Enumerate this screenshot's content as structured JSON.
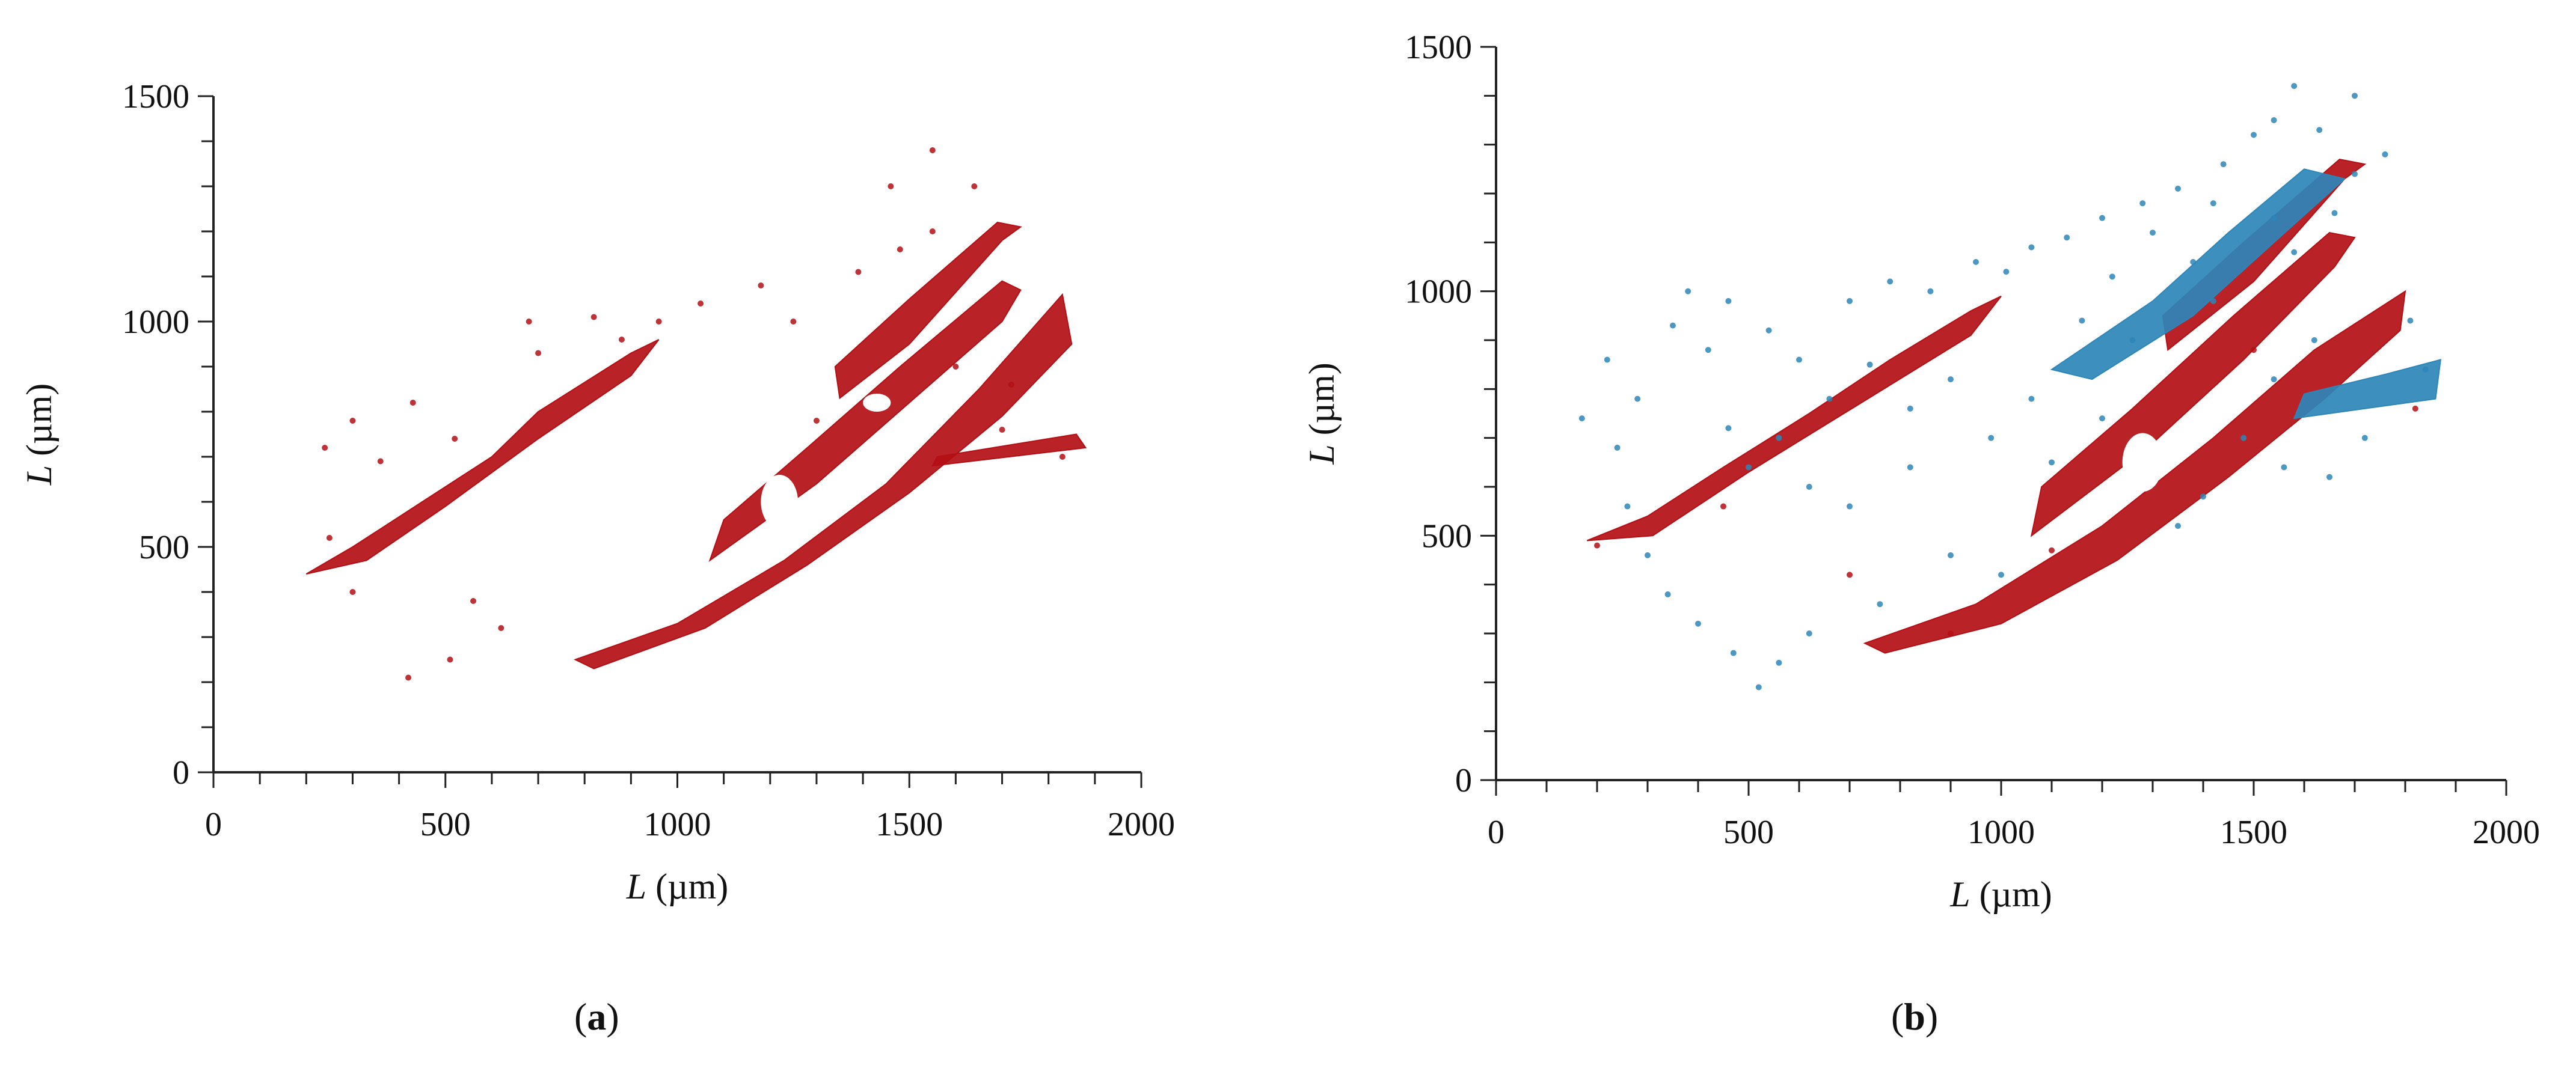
{
  "figure": {
    "panels": [
      {
        "label_open": "(",
        "label_letter": "a",
        "label_close": ")"
      },
      {
        "label_open": "(",
        "label_letter": "b",
        "label_close": ")"
      }
    ]
  },
  "chart_data": [
    {
      "type": "scatter",
      "title": "",
      "xlabel_var": "L",
      "xlabel_unit": "(µm)",
      "ylabel_var": "L",
      "ylabel_unit": "(µm)",
      "xlim": [
        0,
        2000
      ],
      "ylim": [
        0,
        1500
      ],
      "xticks": [
        0,
        500,
        1000,
        1500,
        2000
      ],
      "yticks": [
        0,
        500,
        1000,
        1500
      ],
      "x_minor_step": 100,
      "y_minor_step": 100,
      "grid": false,
      "legend": "none",
      "colors": {
        "pore": "#b30f14",
        "pore_dark": "#5c0a0c"
      },
      "series": [
        {
          "color": "#b30f14",
          "regions": [
            {
              "polygon": [
                [
                  780,
                  250
                ],
                [
                  1000,
                  330
                ],
                [
                  1230,
                  470
                ],
                [
                  1450,
                  640
                ],
                [
                  1650,
                  850
                ],
                [
                  1830,
                  1060
                ],
                [
                  1850,
                  950
                ],
                [
                  1700,
                  790
                ],
                [
                  1500,
                  620
                ],
                [
                  1280,
                  460
                ],
                [
                  1060,
                  320
                ],
                [
                  820,
                  230
                ]
              ]
            },
            {
              "polygon": [
                [
                  1070,
                  470
                ],
                [
                  1300,
                  640
                ],
                [
                  1500,
                  820
                ],
                [
                  1700,
                  1000
                ],
                [
                  1740,
                  1070
                ],
                [
                  1700,
                  1090
                ],
                [
                  1480,
                  900
                ],
                [
                  1280,
                  720
                ],
                [
                  1100,
                  560
                ]
              ]
            },
            {
              "polygon": [
                [
                  1350,
                  830
                ],
                [
                  1500,
                  950
                ],
                [
                  1700,
                  1180
                ],
                [
                  1740,
                  1210
                ],
                [
                  1690,
                  1220
                ],
                [
                  1500,
                  1050
                ],
                [
                  1340,
                  900
                ]
              ]
            },
            {
              "polygon": [
                [
                  200,
                  440
                ],
                [
                  300,
                  500
                ],
                [
                  450,
                  600
                ],
                [
                  600,
                  700
                ],
                [
                  700,
                  800
                ],
                [
                  900,
                  930
                ],
                [
                  960,
                  960
                ],
                [
                  900,
                  880
                ],
                [
                  700,
                  740
                ],
                [
                  500,
                  590
                ],
                [
                  330,
                  470
                ]
              ]
            },
            {
              "polygon": [
                [
                  1550,
                  680
                ],
                [
                  1880,
                  720
                ],
                [
                  1860,
                  750
                ],
                [
                  1560,
                  700
                ]
              ]
            }
          ],
          "holes": [
            {
              "center": [
                1220,
                600
              ],
              "rx": 40,
              "ry": 60
            },
            {
              "center": [
                880,
                340
              ],
              "rx": 55,
              "ry": 30
            },
            {
              "center": [
                1000,
                480
              ],
              "rx": 35,
              "ry": 25
            },
            {
              "center": [
                1430,
                820
              ],
              "rx": 30,
              "ry": 20
            }
          ],
          "scatter": [
            [
              240,
              720
            ],
            [
              300,
              780
            ],
            [
              360,
              690
            ],
            [
              430,
              820
            ],
            [
              520,
              740
            ],
            [
              700,
              930
            ],
            [
              880,
              960
            ],
            [
              1050,
              1040
            ],
            [
              1180,
              1080
            ],
            [
              1390,
              1110
            ],
            [
              1480,
              1160
            ],
            [
              1550,
              1200
            ],
            [
              1300,
              780
            ],
            [
              1600,
              900
            ],
            [
              1700,
              760
            ],
            [
              560,
              380
            ],
            [
              620,
              320
            ],
            [
              510,
              250
            ],
            [
              420,
              210
            ],
            [
              300,
              400
            ],
            [
              250,
              520
            ],
            [
              680,
              1000
            ],
            [
              820,
              1010
            ],
            [
              960,
              1000
            ],
            [
              1250,
              1000
            ],
            [
              1460,
              1300
            ],
            [
              1550,
              1380
            ],
            [
              1640,
              1300
            ],
            [
              1720,
              860
            ],
            [
              1830,
              700
            ]
          ]
        }
      ]
    },
    {
      "type": "scatter",
      "title": "",
      "xlabel_var": "L",
      "xlabel_unit": "(µm)",
      "ylabel_var": "L",
      "ylabel_unit": "(µm)",
      "xlim": [
        0,
        2000
      ],
      "ylim": [
        0,
        1500
      ],
      "xticks": [
        0,
        500,
        1000,
        1500,
        2000
      ],
      "yticks": [
        0,
        500,
        1000,
        1500
      ],
      "x_minor_step": 100,
      "y_minor_step": 100,
      "grid": false,
      "legend": "none",
      "colors": {
        "pore": "#b30f14",
        "pore_blue": "#2d86b8",
        "pore_dark": "#1f3a5a"
      },
      "series": [
        {
          "color": "#b30f14",
          "regions": [
            {
              "polygon": [
                [
                  730,
                  280
                ],
                [
                  950,
                  360
                ],
                [
                  1200,
                  520
                ],
                [
                  1420,
                  700
                ],
                [
                  1620,
                  880
                ],
                [
                  1800,
                  1000
                ],
                [
                  1790,
                  920
                ],
                [
                  1640,
                  780
                ],
                [
                  1450,
                  620
                ],
                [
                  1230,
                  450
                ],
                [
                  1000,
                  320
                ],
                [
                  770,
                  260
                ]
              ]
            },
            {
              "polygon": [
                [
                  1060,
                  500
                ],
                [
                  1290,
                  680
                ],
                [
                  1480,
                  860
                ],
                [
                  1660,
                  1050
                ],
                [
                  1700,
                  1110
                ],
                [
                  1650,
                  1120
                ],
                [
                  1460,
                  950
                ],
                [
                  1260,
                  760
                ],
                [
                  1080,
                  600
                ]
              ]
            },
            {
              "polygon": [
                [
                  1330,
                  880
                ],
                [
                  1500,
                  1020
                ],
                [
                  1680,
                  1230
                ],
                [
                  1720,
                  1260
                ],
                [
                  1670,
                  1270
                ],
                [
                  1480,
                  1100
                ],
                [
                  1320,
                  950
                ]
              ]
            },
            {
              "polygon": [
                [
                  180,
                  490
                ],
                [
                  300,
                  540
                ],
                [
                  450,
                  640
                ],
                [
                  620,
                  750
                ],
                [
                  780,
                  860
                ],
                [
                  940,
                  960
                ],
                [
                  1000,
                  990
                ],
                [
                  940,
                  910
                ],
                [
                  720,
                  770
                ],
                [
                  500,
                  630
                ],
                [
                  310,
                  500
                ]
              ]
            }
          ],
          "holes": [
            {
              "center": [
                1280,
                650
              ],
              "rx": 40,
              "ry": 60
            },
            {
              "center": [
                880,
                380
              ],
              "rx": 55,
              "ry": 30
            },
            {
              "center": [
                980,
                520
              ],
              "rx": 35,
              "ry": 25
            }
          ],
          "scatter": [
            [
              200,
              480
            ],
            [
              450,
              560
            ],
            [
              700,
              420
            ],
            [
              900,
              300
            ],
            [
              1100,
              470
            ],
            [
              1500,
              880
            ],
            [
              1820,
              760
            ]
          ]
        },
        {
          "color": "#2d86b8",
          "regions": [
            {
              "polygon": [
                [
                  1100,
                  840
                ],
                [
                  1300,
                  980
                ],
                [
                  1450,
                  1120
                ],
                [
                  1600,
                  1250
                ],
                [
                  1680,
                  1230
                ],
                [
                  1540,
                  1100
                ],
                [
                  1380,
                  950
                ],
                [
                  1180,
                  820
                ]
              ]
            },
            {
              "polygon": [
                [
                  1580,
                  740
                ],
                [
                  1860,
                  780
                ],
                [
                  1870,
                  860
                ],
                [
                  1760,
                  830
                ],
                [
                  1600,
                  790
                ]
              ]
            }
          ],
          "holes": [],
          "scatter": [
            [
              170,
              740
            ],
            [
              220,
              860
            ],
            [
              280,
              780
            ],
            [
              350,
              930
            ],
            [
              420,
              880
            ],
            [
              500,
              640
            ],
            [
              560,
              700
            ],
            [
              620,
              600
            ],
            [
              700,
              980
            ],
            [
              780,
              1020
            ],
            [
              860,
              1000
            ],
            [
              950,
              1060
            ],
            [
              1010,
              1040
            ],
            [
              1060,
              1090
            ],
            [
              1130,
              1110
            ],
            [
              1200,
              1150
            ],
            [
              1280,
              1180
            ],
            [
              1350,
              1210
            ],
            [
              1440,
              1260
            ],
            [
              1500,
              1320
            ],
            [
              1540,
              1350
            ],
            [
              1580,
              1420
            ],
            [
              1630,
              1330
            ],
            [
              1700,
              1240
            ],
            [
              1760,
              1280
            ],
            [
              1810,
              940
            ],
            [
              1840,
              840
            ],
            [
              1720,
              700
            ],
            [
              1650,
              620
            ],
            [
              1560,
              640
            ],
            [
              1480,
              700
            ],
            [
              1400,
              580
            ],
            [
              1350,
              520
            ],
            [
              1200,
              740
            ],
            [
              1100,
              650
            ],
            [
              1000,
              420
            ],
            [
              900,
              460
            ],
            [
              760,
              360
            ],
            [
              620,
              300
            ],
            [
              560,
              240
            ],
            [
              520,
              190
            ],
            [
              470,
              260
            ],
            [
              400,
              320
            ],
            [
              340,
              380
            ],
            [
              300,
              460
            ],
            [
              260,
              560
            ],
            [
              240,
              680
            ],
            [
              460,
              720
            ],
            [
              700,
              560
            ],
            [
              820,
              640
            ],
            [
              1260,
              900
            ],
            [
              1420,
              980
            ],
            [
              1580,
              1080
            ],
            [
              1060,
              780
            ],
            [
              980,
              700
            ],
            [
              1160,
              940
            ],
            [
              1660,
              1160
            ],
            [
              1620,
              900
            ],
            [
              1540,
              820
            ],
            [
              1380,
              1060
            ],
            [
              1300,
              1120
            ],
            [
              1220,
              1030
            ],
            [
              900,
              820
            ],
            [
              820,
              760
            ],
            [
              740,
              850
            ],
            [
              660,
              780
            ],
            [
              600,
              860
            ],
            [
              540,
              920
            ],
            [
              380,
              1000
            ],
            [
              460,
              980
            ],
            [
              1420,
              1180
            ],
            [
              1700,
              1400
            ],
            [
              1540,
              1150
            ]
          ]
        }
      ]
    }
  ]
}
